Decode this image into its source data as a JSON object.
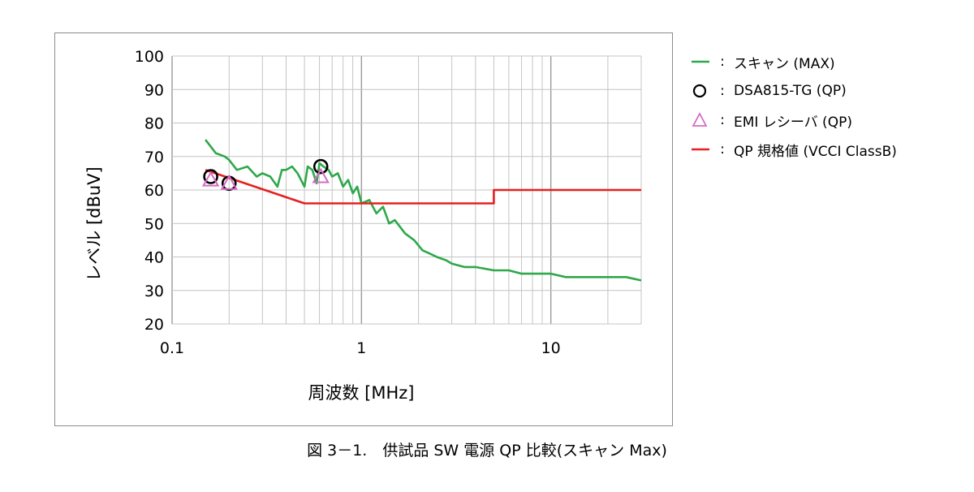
{
  "chart_data": {
    "type": "line",
    "xscale": "log",
    "xlim": [
      0.1,
      30
    ],
    "ylim": [
      20,
      100
    ],
    "xlabel": "周波数 [MHz]",
    "ylabel": "レベル [dBuV]",
    "x_ticks": [
      0.1,
      1,
      10
    ],
    "x_tick_labels": [
      "0.1",
      "1",
      "10"
    ],
    "y_ticks": [
      20,
      30,
      40,
      50,
      60,
      70,
      80,
      90,
      100
    ],
    "y_tick_labels": [
      "20",
      "30",
      "40",
      "50",
      "60",
      "70",
      "80",
      "90",
      "100"
    ],
    "grid": true,
    "legend_position": "right",
    "series": [
      {
        "name": "スキャン (MAX)",
        "style": "line",
        "color": "#2ea84a",
        "x": [
          0.15,
          0.17,
          0.19,
          0.2,
          0.22,
          0.25,
          0.28,
          0.3,
          0.33,
          0.36,
          0.38,
          0.4,
          0.43,
          0.46,
          0.5,
          0.52,
          0.55,
          0.58,
          0.6,
          0.63,
          0.67,
          0.7,
          0.75,
          0.8,
          0.85,
          0.9,
          0.95,
          1.0,
          1.1,
          1.2,
          1.3,
          1.4,
          1.5,
          1.7,
          1.9,
          2.1,
          2.3,
          2.5,
          2.8,
          3.0,
          3.5,
          4.0,
          5.0,
          6.0,
          7.0,
          8.0,
          10.0,
          12.0,
          15.0,
          18.0,
          20.0,
          25.0,
          30.0
        ],
        "values": [
          75,
          71,
          70,
          69,
          66,
          67,
          64,
          65,
          64,
          61,
          66,
          66,
          67,
          65,
          61,
          67,
          66,
          62,
          68,
          67,
          66,
          64,
          65,
          61,
          63,
          59,
          61,
          56,
          57,
          53,
          55,
          50,
          51,
          47,
          45,
          42,
          41,
          40,
          39,
          38,
          37,
          37,
          36,
          36,
          35,
          35,
          35,
          34,
          34,
          34,
          34,
          34,
          33
        ]
      },
      {
        "name": "DSA815-TG (QP)",
        "style": "circle-marker",
        "color": "#000000",
        "x": [
          0.16,
          0.2,
          0.61
        ],
        "values": [
          64,
          62,
          67
        ]
      },
      {
        "name": "EMI レシーバ (QP)",
        "style": "triangle-marker",
        "color": "#d46cc4",
        "x": [
          0.16,
          0.2,
          0.61
        ],
        "values": [
          63,
          62,
          64
        ]
      },
      {
        "name": "QP 規格値 (VCCI ClassB)",
        "style": "line",
        "color": "#e62020",
        "x": [
          0.15,
          0.5,
          5,
          5,
          30
        ],
        "values": [
          66,
          56,
          56,
          60,
          60
        ]
      }
    ]
  },
  "legend": {
    "colon": ":",
    "items": [
      {
        "label": "スキャン (MAX)",
        "color": "#2ea84a",
        "marker": "line"
      },
      {
        "label": "DSA815-TG (QP)",
        "color": "#000000",
        "marker": "circle"
      },
      {
        "label": "EMI レシーバ (QP)",
        "color": "#d46cc4",
        "marker": "triangle"
      },
      {
        "label": "QP 規格値 (VCCI ClassB)",
        "color": "#e62020",
        "marker": "line"
      }
    ]
  },
  "caption": "図 3－1.　供試品 SW 電源 QP 比較(スキャン Max)"
}
